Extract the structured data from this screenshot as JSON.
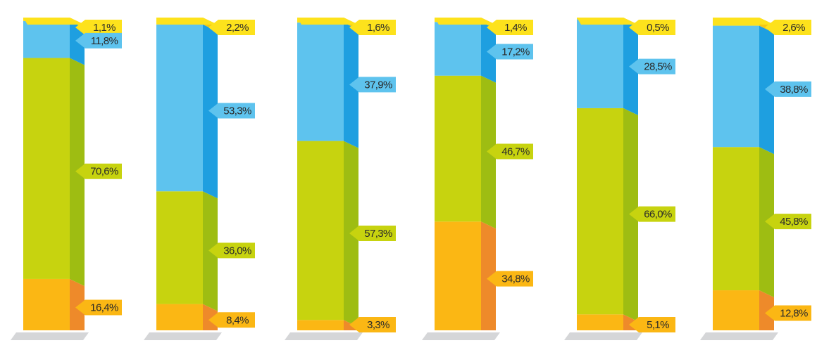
{
  "chart_data": {
    "type": "bar",
    "stacked": true,
    "ylim": [
      0,
      100
    ],
    "grid": false,
    "legend": "none",
    "colors": {
      "orange": "#fbb714",
      "green": "#c7d30f",
      "blue": "#5ec3ee",
      "yellow": "#fde21c"
    },
    "segment_order_bottom_to_top": [
      "orange",
      "green",
      "blue",
      "yellow"
    ],
    "bars": [
      {
        "orange": 16.4,
        "green": 70.6,
        "blue": 11.8,
        "yellow": 1.1,
        "labels": {
          "orange": "16,4%",
          "green": "70,6%",
          "blue": "11,8%",
          "yellow": "1,1%"
        }
      },
      {
        "orange": 8.4,
        "green": 36.0,
        "blue": 53.3,
        "yellow": 2.2,
        "labels": {
          "orange": "8,4%",
          "green": "36,0%",
          "blue": "53,3%",
          "yellow": "2,2%"
        }
      },
      {
        "orange": 3.3,
        "green": 57.3,
        "blue": 37.9,
        "yellow": 1.6,
        "labels": {
          "orange": "3,3%",
          "green": "57,3%",
          "blue": "37,9%",
          "yellow": "1,6%"
        }
      },
      {
        "orange": 34.8,
        "green": 46.7,
        "blue": 17.2,
        "yellow": 1.4,
        "labels": {
          "orange": "34,8%",
          "green": "46,7%",
          "blue": "17,2%",
          "yellow": "1,4%"
        }
      },
      {
        "orange": 5.1,
        "green": 66.0,
        "blue": 28.5,
        "yellow": 0.5,
        "labels": {
          "orange": "5,1%",
          "green": "66,0%",
          "blue": "28,5%",
          "yellow": "0,5%"
        }
      },
      {
        "orange": 12.8,
        "green": 45.8,
        "blue": 38.8,
        "yellow": 2.6,
        "labels": {
          "orange": "12,8%",
          "green": "45,8%",
          "blue": "38,8%",
          "yellow": "2,6%"
        }
      }
    ]
  }
}
